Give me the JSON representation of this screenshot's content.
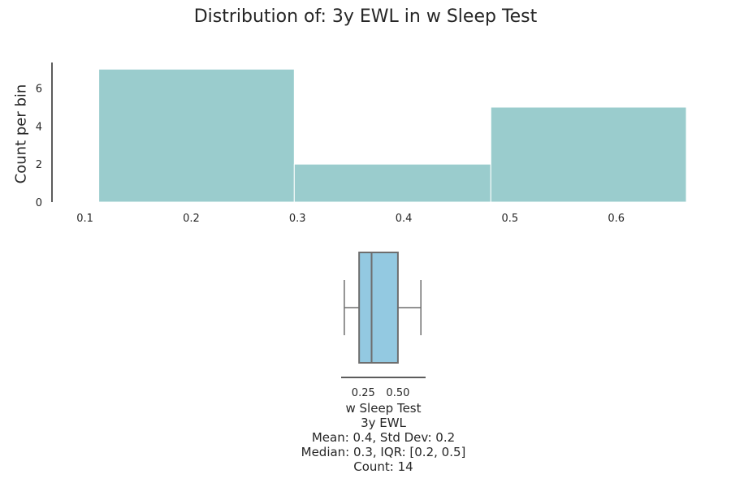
{
  "chart_data": [
    {
      "type": "histogram",
      "title": "Distribution of: 3y EWL in w Sleep Test",
      "ylabel": "Count per bin",
      "xlabel": "",
      "bins": [
        {
          "start": 0.113,
          "end": 0.297,
          "count": 7
        },
        {
          "start": 0.297,
          "end": 0.482,
          "count": 2
        },
        {
          "start": 0.482,
          "end": 0.666,
          "count": 5
        }
      ],
      "xlim": [
        0.085,
        0.666
      ],
      "ylim": [
        0,
        7.35
      ],
      "xticks": [
        "0.1",
        "0.2",
        "0.3",
        "0.4",
        "0.5",
        "0.6"
      ],
      "xtick_values": [
        0.1,
        0.2,
        0.3,
        0.4,
        0.5,
        0.6
      ],
      "yticks": [
        "0",
        "2",
        "4",
        "6"
      ],
      "ytick_values": [
        0,
        2,
        4,
        6
      ],
      "color": "#9acccd",
      "grid": false
    },
    {
      "type": "boxplot",
      "orientation": "horizontal",
      "whisker_low": 0.113,
      "q1": 0.22,
      "median": 0.31,
      "q3": 0.5,
      "whisker_high": 0.666,
      "xlim": [
        0.09,
        0.7
      ],
      "xticks": [
        "0.25",
        "0.50"
      ],
      "xtick_values": [
        0.25,
        0.5
      ],
      "color": "#93c9e1",
      "edge_color": "#6e6e6e"
    }
  ],
  "stats_lines": [
    "w Sleep Test",
    "3y EWL",
    "Mean: 0.4, Std Dev: 0.2",
    "Median: 0.3, IQR: [0.2, 0.5]",
    "Count: 14"
  ]
}
